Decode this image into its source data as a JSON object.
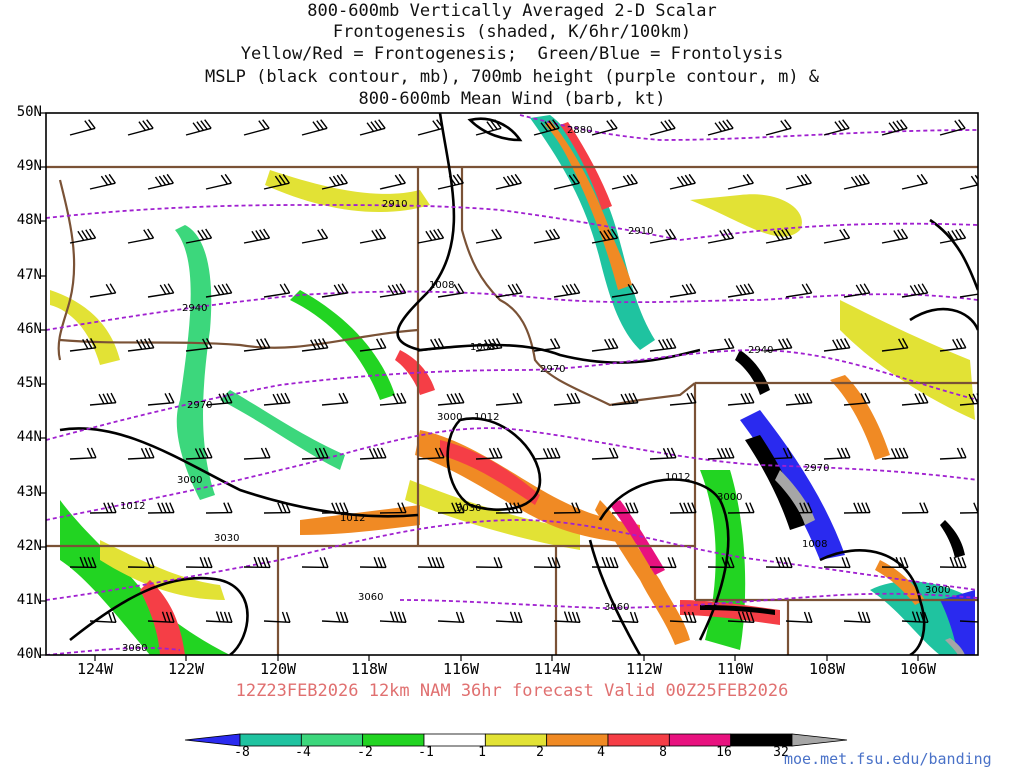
{
  "title": {
    "line1": "800-600mb Vertically Averaged 2-D Scalar",
    "line2": "Frontogenesis (shaded, K/6hr/100km)",
    "line3": "Yellow/Red = Frontogenesis;  Green/Blue = Frontolysis",
    "line4": "MSLP (black contour, mb), 700mb height (purple contour, m) &",
    "line5": "800-600mb Mean Wind (barb, kt)"
  },
  "axes": {
    "lat_labels": [
      "50N",
      "49N",
      "48N",
      "47N",
      "46N",
      "45N",
      "44N",
      "43N",
      "42N",
      "41N",
      "40N"
    ],
    "lon_labels": [
      "124W",
      "122W",
      "120W",
      "118W",
      "116W",
      "114W",
      "112W",
      "110W",
      "108W",
      "106W"
    ]
  },
  "contour_labels": {
    "height": [
      "2880",
      "2910",
      "2910",
      "2940",
      "2940",
      "2970",
      "2970",
      "2970",
      "3000",
      "3000",
      "3000",
      "3000",
      "3030",
      "3030",
      "3060",
      "3060",
      "3060"
    ],
    "mslp": [
      "1008",
      "1008",
      "1008",
      "1012",
      "1012",
      "1012",
      "1012"
    ]
  },
  "footer": {
    "run_info": "12Z23FEB2026 12km NAM 36hr forecast Valid 00Z25FEB2026",
    "url": "moe.met.fsu.edu/banding"
  },
  "colorbar": {
    "labels": [
      "-8",
      "-4",
      "-2",
      "-1",
      "1",
      "2",
      "4",
      "8",
      "16",
      "32"
    ],
    "colors": [
      "#2a2aef",
      "#1fc3a0",
      "#3cd77c",
      "#22d422",
      "#ffffff",
      "#e2e235",
      "#f08a24",
      "#f53e46",
      "#e8127f",
      "#000000",
      "#a6a6a6"
    ]
  },
  "colors": {
    "height_contour": "#a020d0",
    "mslp_contour": "#000000",
    "borders": "#7a5236",
    "footer_text": "#e07070"
  }
}
